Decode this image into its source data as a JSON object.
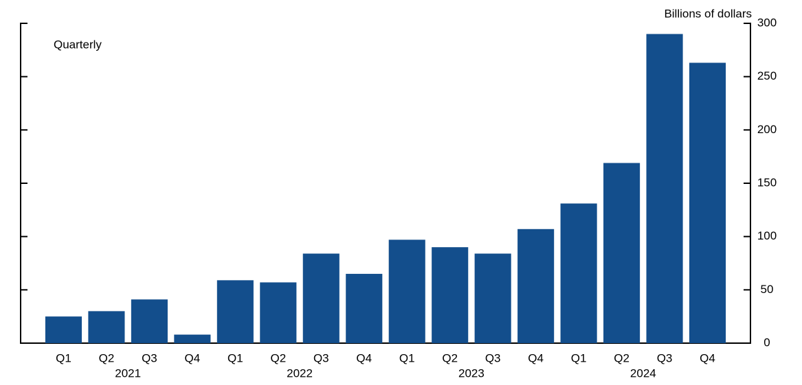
{
  "chart_data": {
    "type": "bar",
    "annotation": "Quarterly",
    "y_label": "Billions of dollars",
    "categories": [
      "Q1",
      "Q2",
      "Q3",
      "Q4",
      "Q1",
      "Q2",
      "Q3",
      "Q4",
      "Q1",
      "Q2",
      "Q3",
      "Q4",
      "Q1",
      "Q2",
      "Q3",
      "Q4"
    ],
    "groups": [
      "2021",
      "2022",
      "2023",
      "2024"
    ],
    "values": [
      25,
      30,
      41,
      8,
      59,
      57,
      84,
      65,
      97,
      90,
      84,
      107,
      131,
      169,
      290,
      263
    ],
    "color": "#134e8c",
    "ylim": [
      0,
      300
    ],
    "yticks": [
      0,
      50,
      100,
      150,
      200,
      250,
      300
    ]
  }
}
